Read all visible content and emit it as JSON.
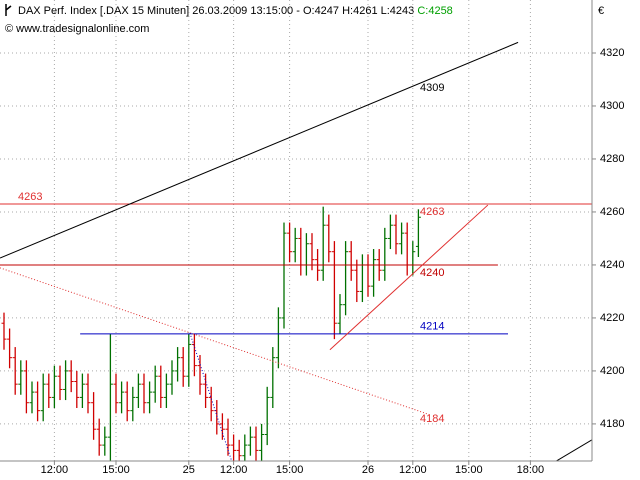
{
  "chart_data": {
    "type": "ohlc",
    "title": "DAX Perf. Index [.DAX  15 Minuten] 26.03.2009 13:15:00 - O:4247 H:4261 L:4243",
    "title_close": "C:4258",
    "subtitle": "© www.tradesignalonline.com",
    "y_axis_label": "€",
    "up_color": "#007000",
    "down_color": "#d00000",
    "grid": true,
    "xlim": [
      -0.714,
      105
    ],
    "ylim": [
      4166,
      4340
    ],
    "yticks": [
      4180,
      4200,
      4220,
      4240,
      4260,
      4280,
      4300,
      4320
    ],
    "xticks": [
      {
        "value": 9,
        "label": "12:00"
      },
      {
        "value": 20,
        "label": "15:00"
      },
      {
        "value": 33,
        "label": "25"
      },
      {
        "value": 41,
        "label": "12:00"
      },
      {
        "value": 51,
        "label": "15:00"
      },
      {
        "value": 65,
        "label": "26"
      },
      {
        "value": 73,
        "label": "12:00"
      },
      {
        "value": 83,
        "label": "15:00"
      },
      {
        "value": 94,
        "label": "18:00"
      }
    ],
    "open": [
      4218,
      4212,
      4205,
      4195,
      4200,
      4188,
      4192,
      4185,
      4195,
      4190,
      4198,
      4193,
      4200,
      4196,
      4190,
      4195,
      4188,
      4178,
      4172,
      4175,
      4195,
      4188,
      4192,
      4185,
      4190,
      4195,
      4188,
      4192,
      4198,
      4190,
      4195,
      4200,
      4205,
      4198,
      4210,
      4202,
      4195,
      4190,
      4185,
      4180,
      4178,
      4172,
      4170,
      4168,
      4172,
      4175,
      4170,
      4176,
      4190,
      4205,
      4220,
      4252,
      4245,
      4250,
      4240,
      4248,
      4242,
      4238,
      4255,
      4245,
      4218,
      4225,
      4245,
      4238,
      4230,
      4240,
      4232,
      4242,
      4238,
      4250,
      4255,
      4248,
      4252,
      4240,
      4247
    ],
    "high": [
      4222,
      4216,
      4209,
      4204,
      4204,
      4196,
      4196,
      4199,
      4199,
      4202,
      4202,
      4204,
      4204,
      4200,
      4199,
      4199,
      4192,
      4182,
      4179,
      4214,
      4199,
      4196,
      4196,
      4194,
      4199,
      4199,
      4196,
      4202,
      4202,
      4199,
      4204,
      4209,
      4209,
      4214,
      4214,
      4206,
      4199,
      4194,
      4189,
      4184,
      4182,
      4176,
      4174,
      4176,
      4179,
      4179,
      4180,
      4194,
      4209,
      4224,
      4256,
      4256,
      4254,
      4254,
      4252,
      4252,
      4246,
      4262,
      4259,
      4249,
      4229,
      4249,
      4249,
      4242,
      4244,
      4244,
      4246,
      4246,
      4254,
      4259,
      4259,
      4256,
      4256,
      4249,
      4261
    ],
    "low": [
      4208,
      4201,
      4191,
      4191,
      4184,
      4184,
      4181,
      4181,
      4186,
      4186,
      4189,
      4189,
      4192,
      4186,
      4186,
      4184,
      4174,
      4168,
      4168,
      4166,
      4184,
      4184,
      4181,
      4181,
      4186,
      4184,
      4184,
      4188,
      4186,
      4186,
      4191,
      4196,
      4194,
      4194,
      4198,
      4191,
      4186,
      4181,
      4176,
      4174,
      4168,
      4166,
      4166,
      4166,
      4168,
      4166,
      4166,
      4172,
      4186,
      4201,
      4216,
      4241,
      4241,
      4236,
      4236,
      4238,
      4234,
      4234,
      4241,
      4212,
      4214,
      4221,
      4234,
      4226,
      4226,
      4228,
      4228,
      4234,
      4234,
      4246,
      4244,
      4244,
      4236,
      4236,
      4243
    ],
    "close": [
      4212,
      4205,
      4195,
      4200,
      4188,
      4192,
      4185,
      4195,
      4190,
      4198,
      4193,
      4200,
      4196,
      4190,
      4195,
      4188,
      4178,
      4172,
      4175,
      4195,
      4188,
      4192,
      4185,
      4190,
      4195,
      4188,
      4192,
      4198,
      4190,
      4195,
      4200,
      4205,
      4198,
      4210,
      4202,
      4195,
      4190,
      4185,
      4180,
      4178,
      4172,
      4170,
      4168,
      4172,
      4175,
      4170,
      4176,
      4190,
      4205,
      4220,
      4252,
      4245,
      4250,
      4240,
      4248,
      4242,
      4238,
      4255,
      4245,
      4218,
      4225,
      4245,
      4238,
      4230,
      4240,
      4232,
      4242,
      4238,
      4250,
      4255,
      4248,
      4252,
      4240,
      4245,
      4258
    ],
    "levels": [
      {
        "value": 4263,
        "color": "#e03030",
        "from": -0.714,
        "to": 105
      },
      {
        "value": 4240,
        "color": "#c00000",
        "from": -0.714,
        "to": 88.2
      },
      {
        "value": 4214,
        "color": "#0000c0",
        "from": 13.6,
        "to": 90
      }
    ],
    "trendlines": [
      {
        "label": 4309,
        "color": "#000000",
        "dash": false,
        "points": [
          [
            -0.714,
            4242.6
          ],
          [
            91.8,
            4324
          ]
        ]
      },
      {
        "label": 4184,
        "color": "#e03030",
        "dash": true,
        "points": [
          [
            -0.714,
            4238.9
          ],
          [
            76.1,
            4183.4
          ]
        ]
      },
      {
        "color": "#e03030",
        "dash": false,
        "points": [
          [
            58.2,
            4208
          ],
          [
            86.4,
            4262.6
          ]
        ]
      },
      {
        "color": "#0000c0",
        "dash": true,
        "points": [
          [
            33.2,
            4214.3
          ],
          [
            40.7,
            4165.7
          ]
        ]
      },
      {
        "color": "#000000",
        "dash": false,
        "points": [
          [
            98.4,
            4165.7
          ],
          [
            105,
            4174
          ]
        ]
      }
    ]
  }
}
